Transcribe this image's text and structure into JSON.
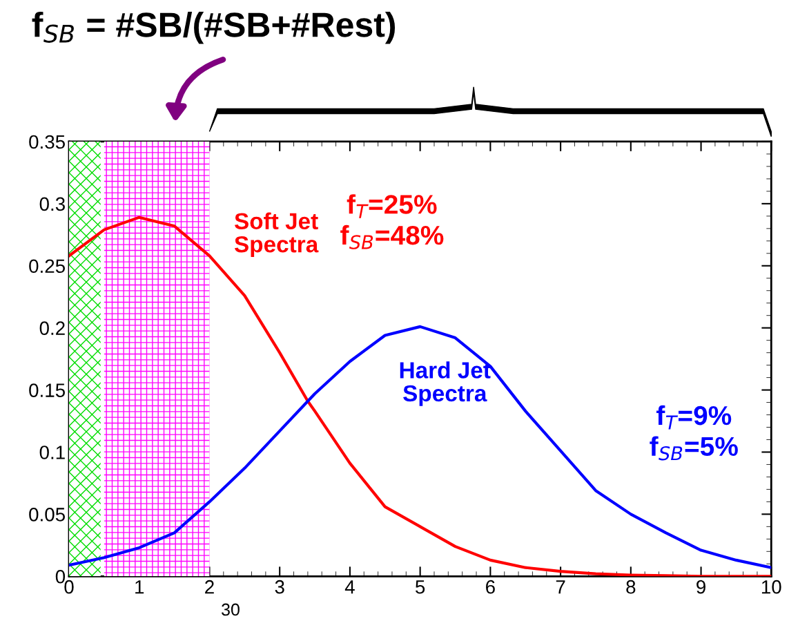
{
  "chart_data": {
    "type": "line",
    "title": "f$_{SB}$ = #SB/(#SB+#Rest)",
    "x": [
      0,
      0.5,
      1,
      1.5,
      2,
      2.5,
      3,
      3.4,
      3.5,
      4,
      4.5,
      5,
      5.5,
      6,
      6.5,
      7,
      7.5,
      8,
      8.5,
      9,
      9.5,
      10
    ],
    "series": [
      {
        "name": "Soft Jet\nSpectra",
        "color": "#ff0000",
        "values": [
          0.258,
          0.279,
          0.289,
          0.282,
          0.258,
          0.226,
          0.18,
          0.141,
          0.133,
          0.091,
          0.056,
          0.04,
          0.024,
          0.013,
          0.007,
          0.004,
          0.002,
          0.001,
          0.0005,
          0,
          0,
          0
        ]
      },
      {
        "name": "Hard Jet\nSpectra",
        "color": "#0000ff",
        "values": [
          0.009,
          0.015,
          0.023,
          0.035,
          0.06,
          0.087,
          0.117,
          0.141,
          0.147,
          0.173,
          0.194,
          0.201,
          0.192,
          0.169,
          0.133,
          0.101,
          0.069,
          0.05,
          0.035,
          0.021,
          0.013,
          0.007
        ]
      }
    ],
    "xlim": [
      0,
      10
    ],
    "ylim": [
      0,
      0.35
    ],
    "xticks": [
      0,
      1,
      2,
      3,
      4,
      5,
      6,
      7,
      8,
      9,
      10
    ],
    "yticks": [
      0,
      0.05,
      {
        "value": 0.1,
        "label": "0.1"
      },
      0.15,
      {
        "value": 0.2,
        "label": "0.2"
      },
      0.25,
      {
        "value": 0.3,
        "label": "0.3"
      },
      0.35
    ],
    "bands": [
      {
        "axis": "x",
        "from": 0,
        "to": 0.45,
        "label": null,
        "color": "#00dd00"
      },
      {
        "axis": "x",
        "from": 0.5,
        "to": 2,
        "label": null,
        "color": "#ff00ff"
      }
    ],
    "annotations": [
      "f$_{T}$=25%\nf$_{SB}$=48%",
      "f$_{T}$=9%\nf$_{SB}$=5%",
      "30"
    ],
    "line_style": "solid",
    "marker": "none",
    "grid": false,
    "legend": false
  }
}
